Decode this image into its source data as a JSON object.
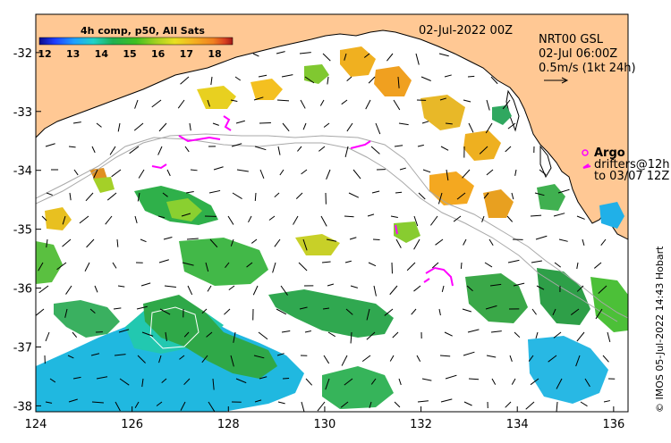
{
  "header": {
    "date_label": "02-Jul-2022 00Z",
    "colorbar_title": "4h comp, p50, All Sats",
    "current_title": "NRT00 GSL",
    "current_time": "02-Jul 06:00Z",
    "current_scale": "0.5m/s (1kt 24h)"
  },
  "legend": {
    "argo_label": "Argo",
    "drifters_label": "drifters@12h",
    "drifters_range": "to 03/07 12Z"
  },
  "credit": "© IMOS 05-Jul-2022 14:43 Hobart",
  "colorbar": {
    "ticks": [
      12,
      13,
      14,
      15,
      16,
      17,
      18
    ],
    "colors": [
      "#0a0a8c",
      "#1f3dff",
      "#1fa0ff",
      "#20d2c8",
      "#20b050",
      "#40c020",
      "#a0d020",
      "#e8e020",
      "#f4b020",
      "#f08020",
      "#d84020",
      "#a01818"
    ]
  },
  "axes": {
    "x_ticks": [
      124,
      126,
      128,
      130,
      132,
      134,
      136
    ],
    "y_ticks": [
      -32,
      -33,
      -34,
      -35,
      -36,
      -37,
      -38
    ],
    "lon_range": [
      124,
      136.3
    ],
    "lat_range": [
      -38.1,
      -31.35
    ]
  },
  "colors": {
    "land": "#ffc894",
    "ocean": "#ffffff",
    "argo": "#ff00ff"
  }
}
